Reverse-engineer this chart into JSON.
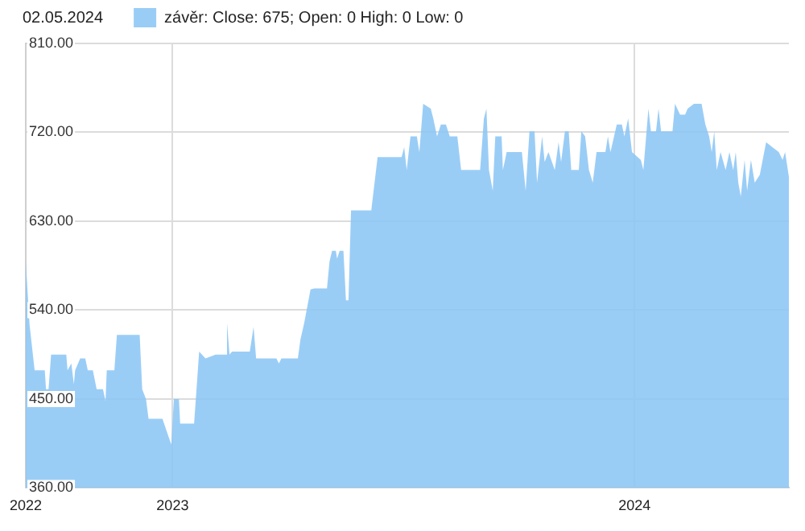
{
  "chart_data": {
    "type": "area",
    "annotations": [
      "02.05.2024"
    ],
    "xlim": [
      "2022-09-07",
      "2024-05-02"
    ],
    "xticks": [
      {
        "value": "2022-09-07",
        "label": "2022"
      },
      {
        "value": "2023-01-01",
        "label": "2023"
      },
      {
        "value": "2024-01-01",
        "label": "2024"
      }
    ],
    "ylim": [
      360,
      810
    ],
    "yticks": [
      {
        "value": 360,
        "label": "360.00"
      },
      {
        "value": 450,
        "label": "450.00"
      },
      {
        "value": 540,
        "label": "540.00"
      },
      {
        "value": 630,
        "label": "630.00"
      },
      {
        "value": 720,
        "label": "720.00"
      },
      {
        "value": 810,
        "label": "810.00"
      }
    ],
    "grid": true,
    "legend": "top left",
    "series": [
      {
        "name": "závěr: Close: 675; Open: 0 High: 0 Low: 0",
        "color": "#8cc6f5",
        "x": [
          "2022-09-07",
          "2022-09-10",
          "2022-09-14",
          "2022-09-22",
          "2022-09-23",
          "2022-09-25",
          "2022-09-27",
          "2022-10-09",
          "2022-10-10",
          "2022-10-13",
          "2022-10-15",
          "2022-10-16",
          "2022-10-20",
          "2022-10-24",
          "2022-10-26",
          "2022-10-30",
          "2022-11-02",
          "2022-11-07",
          "2022-11-09",
          "2022-11-10",
          "2022-11-16",
          "2022-11-18",
          "2022-12-06",
          "2022-12-08",
          "2022-12-11",
          "2022-12-13",
          "2022-12-24",
          "2022-12-28",
          "2022-12-31",
          "2023-01-02",
          "2023-01-06",
          "2023-01-07",
          "2023-01-18",
          "2023-01-22",
          "2023-01-27",
          "2023-02-04",
          "2023-02-12",
          "2023-02-13",
          "2023-02-15",
          "2023-02-17",
          "2023-03-03",
          "2023-03-06",
          "2023-03-08",
          "2023-03-24",
          "2023-03-26",
          "2023-03-28",
          "2023-04-10",
          "2023-04-12",
          "2023-04-15",
          "2023-04-20",
          "2023-04-23",
          "2023-05-03",
          "2023-05-05",
          "2023-05-07",
          "2023-05-10",
          "2023-05-11",
          "2023-05-13",
          "2023-05-16",
          "2023-05-18",
          "2023-05-20",
          "2023-05-22",
          "2023-06-07",
          "2023-06-12",
          "2023-07-01",
          "2023-07-03",
          "2023-07-05",
          "2023-07-08",
          "2023-07-13",
          "2023-07-15",
          "2023-07-18",
          "2023-07-24",
          "2023-07-26",
          "2023-07-29",
          "2023-08-01",
          "2023-08-05",
          "2023-08-08",
          "2023-08-14",
          "2023-08-17",
          "2023-09-01",
          "2023-09-04",
          "2023-09-06",
          "2023-09-08",
          "2023-09-11",
          "2023-09-13",
          "2023-09-18",
          "2023-09-19",
          "2023-09-22",
          "2023-10-04",
          "2023-10-07",
          "2023-10-10",
          "2023-10-14",
          "2023-10-16",
          "2023-10-20",
          "2023-10-22",
          "2023-10-25",
          "2023-10-30",
          "2023-11-02",
          "2023-11-04",
          "2023-11-07",
          "2023-11-10",
          "2023-11-12",
          "2023-11-18",
          "2023-11-20",
          "2023-11-23",
          "2023-11-26",
          "2023-11-29",
          "2023-12-02",
          "2023-12-09",
          "2023-12-11",
          "2023-12-13",
          "2023-12-18",
          "2023-12-22",
          "2023-12-24",
          "2023-12-27",
          "2023-12-30",
          "2024-01-06",
          "2024-01-08",
          "2024-01-12",
          "2024-01-14",
          "2024-01-18",
          "2024-01-20",
          "2024-01-22",
          "2024-01-31",
          "2024-02-02",
          "2024-02-06",
          "2024-02-10",
          "2024-02-12",
          "2024-02-17",
          "2024-02-23",
          "2024-02-26",
          "2024-02-29",
          "2024-03-02",
          "2024-03-04",
          "2024-03-06",
          "2024-03-09",
          "2024-03-13",
          "2024-03-16",
          "2024-03-19",
          "2024-03-21",
          "2024-03-23",
          "2024-03-25",
          "2024-03-28",
          "2024-03-30",
          "2024-04-02",
          "2024-04-05",
          "2024-04-09",
          "2024-04-14",
          "2024-04-19",
          "2024-04-24",
          "2024-04-27",
          "2024-04-29",
          "2024-05-02"
        ],
        "values": [
          589,
          525,
          479,
          479,
          460,
          460,
          495,
          495,
          479,
          486,
          465,
          479,
          491,
          491,
          479,
          479,
          460,
          460,
          448,
          479,
          479,
          515,
          515,
          460,
          450,
          430,
          430,
          415,
          404,
          450,
          450,
          425,
          425,
          498,
          491,
          495,
          495,
          527,
          495,
          498,
          498,
          523,
          491,
          491,
          486,
          491,
          491,
          510,
          527,
          561,
          562,
          562,
          589,
          600,
          600,
          592,
          600,
          600,
          550,
          550,
          641,
          641,
          695,
          695,
          705,
          682,
          716,
          716,
          700,
          749,
          744,
          734,
          716,
          728,
          728,
          716,
          716,
          682,
          682,
          734,
          744,
          682,
          661,
          716,
          716,
          682,
          700,
          700,
          661,
          721,
          721,
          669,
          716,
          690,
          700,
          682,
          710,
          690,
          721,
          721,
          682,
          682,
          721,
          716,
          682,
          669,
          700,
          700,
          716,
          700,
          728,
          728,
          716,
          734,
          700,
          692,
          682,
          744,
          721,
          721,
          744,
          721,
          721,
          749,
          738,
          738,
          744,
          749,
          749,
          728,
          716,
          700,
          721,
          682,
          700,
          682,
          700,
          682,
          700,
          669,
          655,
          692,
          661,
          692,
          669,
          677,
          710,
          705,
          700,
          692,
          700,
          675
        ]
      }
    ]
  }
}
